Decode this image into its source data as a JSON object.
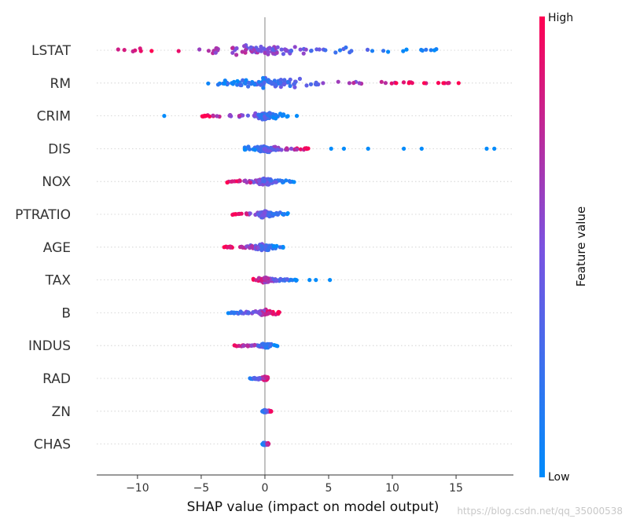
{
  "chart_data": {
    "type": "scatter",
    "subtype": "shap-beeswarm",
    "xlabel": "SHAP value (impact on model output)",
    "xlim": [
      -13.2,
      19.5
    ],
    "xticks": [
      -10,
      -5,
      0,
      5,
      10,
      15
    ],
    "xtick_labels": [
      "−10",
      "−5",
      "0",
      "5",
      "10",
      "15"
    ],
    "colorbar": {
      "title": "Feature value",
      "high_label": "High",
      "low_label": "Low",
      "high_color": "#ff0052",
      "mid_color": "#7b52e0",
      "low_color": "#008bfb"
    },
    "features": [
      {
        "name": "LSTAT",
        "min": -11.8,
        "max": 13.5,
        "spread": 1.0,
        "outliers": [
          [
            13.3,
            0.0
          ]
        ]
      },
      {
        "name": "RM",
        "min": -4.6,
        "max": 15.2,
        "spread": 0.9,
        "outliers": [
          [
            10.3,
            1.0
          ],
          [
            11.3,
            1.0
          ],
          [
            12.5,
            1.0
          ],
          [
            14.0,
            1.0
          ],
          [
            15.2,
            1.0
          ]
        ]
      },
      {
        "name": "CRIM",
        "min": -5.0,
        "max": 1.8,
        "spread": 0.6,
        "outliers": [
          [
            -7.9,
            0.0
          ],
          [
            2.5,
            0.0
          ]
        ]
      },
      {
        "name": "DIS",
        "min": -1.6,
        "max": 3.6,
        "spread": 0.6,
        "outliers": [
          [
            5.2,
            0.0
          ],
          [
            6.2,
            0.0
          ],
          [
            8.1,
            0.0
          ],
          [
            10.9,
            0.0
          ],
          [
            12.3,
            0.0
          ],
          [
            17.4,
            0.0
          ],
          [
            18.0,
            0.0
          ]
        ]
      },
      {
        "name": "NOX",
        "min": -3.1,
        "max": 2.5,
        "spread": 0.55,
        "outliers": []
      },
      {
        "name": "PTRATIO",
        "min": -2.6,
        "max": 1.8,
        "spread": 0.5,
        "outliers": []
      },
      {
        "name": "AGE",
        "min": -3.2,
        "max": 1.6,
        "spread": 0.55,
        "outliers": [
          [
            -3.2,
            1.0
          ]
        ]
      },
      {
        "name": "TAX",
        "min": -1.0,
        "max": 2.5,
        "spread": 0.45,
        "outliers": [
          [
            3.5,
            0.0
          ],
          [
            4.0,
            0.0
          ],
          [
            5.1,
            0.0
          ]
        ]
      },
      {
        "name": "B",
        "min": -3.0,
        "max": 1.2,
        "spread": 0.5,
        "outliers": []
      },
      {
        "name": "INDUS",
        "min": -2.4,
        "max": 1.0,
        "spread": 0.35,
        "outliers": []
      },
      {
        "name": "RAD",
        "min": -1.2,
        "max": 0.3,
        "spread": 0.3,
        "outliers": []
      },
      {
        "name": "ZN",
        "min": -0.2,
        "max": 0.5,
        "spread": 0.2,
        "outliers": []
      },
      {
        "name": "CHAS",
        "min": -0.2,
        "max": 0.3,
        "spread": 0.2,
        "outliers": []
      }
    ]
  },
  "watermark": "https://blog.csdn.net/qq_35000538"
}
